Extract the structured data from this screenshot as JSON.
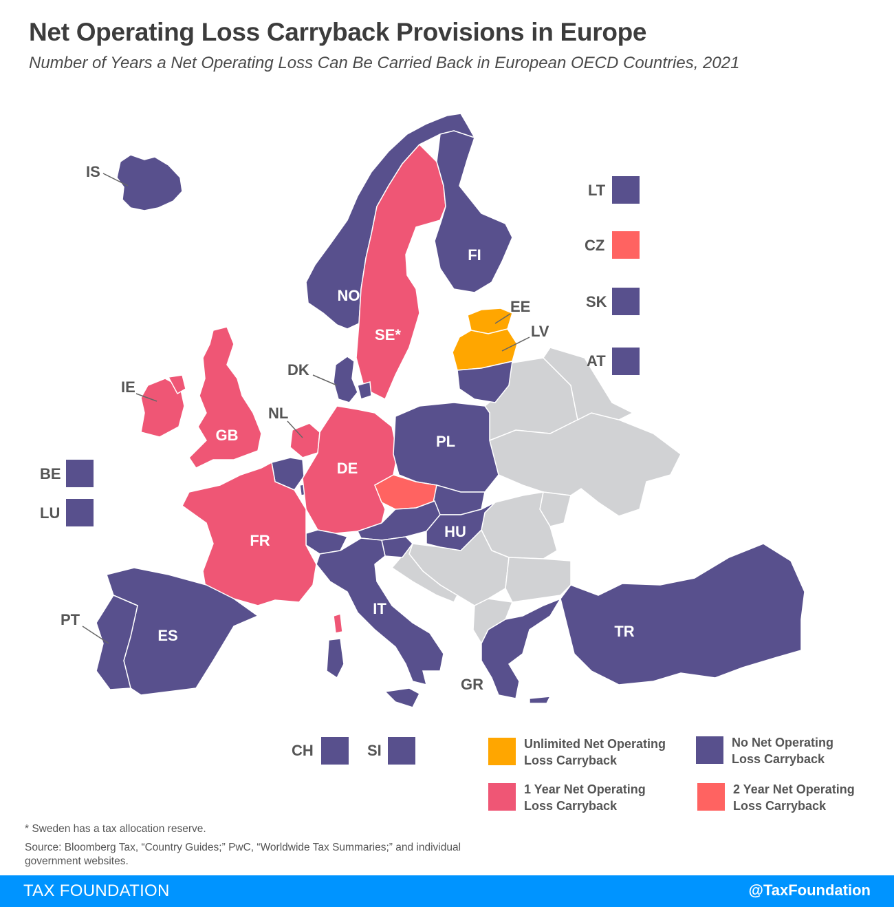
{
  "title": "Net Operating Loss Carryback Provisions in Europe",
  "subtitle": "Number of Years a Net Operating Loss Can Be Carried Back in European OECD Countries, 2021",
  "colors": {
    "no_carryback": "#58508d",
    "one_year": "#ef5675",
    "two_year": "#ff6361",
    "unlimited": "#ffa600",
    "non_oecd": "#d1d2d4",
    "border": "#ffffff"
  },
  "countries": [
    {
      "code": "IS",
      "category": "no_carryback"
    },
    {
      "code": "NO",
      "category": "no_carryback"
    },
    {
      "code": "SE",
      "label": "SE*",
      "category": "one_year"
    },
    {
      "code": "FI",
      "category": "no_carryback"
    },
    {
      "code": "EE",
      "category": "unlimited"
    },
    {
      "code": "LV",
      "category": "unlimited"
    },
    {
      "code": "LT",
      "category": "no_carryback"
    },
    {
      "code": "DK",
      "category": "no_carryback"
    },
    {
      "code": "IE",
      "category": "one_year"
    },
    {
      "code": "GB",
      "category": "one_year"
    },
    {
      "code": "NL",
      "category": "one_year"
    },
    {
      "code": "BE",
      "category": "no_carryback"
    },
    {
      "code": "LU",
      "category": "no_carryback"
    },
    {
      "code": "DE",
      "category": "one_year"
    },
    {
      "code": "PL",
      "category": "no_carryback"
    },
    {
      "code": "CZ",
      "category": "two_year"
    },
    {
      "code": "SK",
      "category": "no_carryback"
    },
    {
      "code": "AT",
      "category": "no_carryback"
    },
    {
      "code": "HU",
      "category": "no_carryback"
    },
    {
      "code": "CH",
      "category": "no_carryback"
    },
    {
      "code": "SI",
      "category": "no_carryback"
    },
    {
      "code": "FR",
      "category": "one_year"
    },
    {
      "code": "ES",
      "category": "no_carryback"
    },
    {
      "code": "PT",
      "category": "no_carryback"
    },
    {
      "code": "IT",
      "category": "no_carryback"
    },
    {
      "code": "GR",
      "category": "no_carryback"
    },
    {
      "code": "TR",
      "category": "no_carryback"
    }
  ],
  "map_labels": {
    "FI": "FI",
    "NO": "NO",
    "SE": "SE*",
    "GB": "GB",
    "DE": "DE",
    "PL": "PL",
    "FR": "FR",
    "ES": "ES",
    "IT": "IT",
    "HU": "HU",
    "TR": "TR",
    "IS": "IS",
    "DK": "DK",
    "IE": "IE",
    "NL": "NL",
    "PT": "PT",
    "GR": "GR",
    "EE": "EE",
    "LV": "LV"
  },
  "small_country_boxes": {
    "LT": "LT",
    "CZ": "CZ",
    "SK": "SK",
    "AT": "AT",
    "BE": "BE",
    "LU": "LU",
    "CH": "CH",
    "SI": "SI"
  },
  "legend": {
    "unlimited": [
      "Unlimited Net Operating",
      "Loss Carryback"
    ],
    "no_carryback": [
      "No Net Operating",
      "Loss Carryback"
    ],
    "one_year": [
      "1 Year Net Operating",
      "Loss Carryback"
    ],
    "two_year": [
      "2 Year Net Operating",
      "Loss Carryback"
    ]
  },
  "footnote": "* Sweden has a tax allocation reserve.",
  "source": "Source: Bloomberg Tax, “Country Guides;” PwC, “Worldwide Tax Summaries;” and individual government websites.",
  "footer": {
    "left": "TAX FOUNDATION",
    "right": "@TaxFoundation"
  }
}
